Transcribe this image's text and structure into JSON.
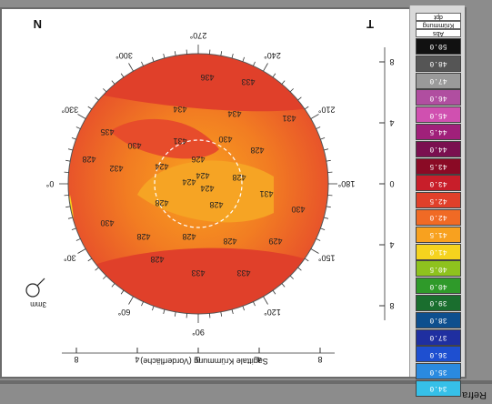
{
  "window_label": "Refra",
  "map": {
    "caption": "Sagittale Krümmung (Vorderfläche)",
    "corner_left": "T",
    "corner_right": "N",
    "scale_label": "3mm",
    "axis_ticks": [
      "8",
      "4",
      "0",
      "4",
      "8"
    ],
    "side_ticks": [
      "8",
      "4",
      "0",
      "4",
      "8"
    ],
    "angles": [
      "90°",
      "60°",
      "30°",
      "0°",
      "330°",
      "300°",
      "270°",
      "240°",
      "210°",
      "180°",
      "150°",
      "120°"
    ],
    "values": [
      "433",
      "433",
      "428",
      "429",
      "428",
      "428",
      "428",
      "430",
      "430",
      "428",
      "428",
      "431",
      "424",
      "424",
      "428",
      "424",
      "424",
      "432",
      "428",
      "426",
      "428",
      "430",
      "431",
      "430",
      "435",
      "431",
      "434",
      "434",
      "433",
      "436"
    ]
  },
  "legend": {
    "header_lines": [
      "Abs",
      "Krümmung",
      "dpt"
    ],
    "values": [
      "50.0",
      "48.0",
      "47.0",
      "46.0",
      "45.0",
      "44.5",
      "44.0",
      "43.5",
      "43.0",
      "42.5",
      "42.0",
      "41.5",
      "41.0",
      "40.5",
      "40.0",
      "39.0",
      "38.0",
      "37.0",
      "36.0",
      "35.0",
      "34.0"
    ],
    "colors": [
      "#111111",
      "#555555",
      "#9a9a9a",
      "#b04ea0",
      "#d050b0",
      "#a0207a",
      "#7a1050",
      "#8a0a25",
      "#c81e2a",
      "#e0402a",
      "#f06a25",
      "#f8a11f",
      "#f5d31e",
      "#8ec21e",
      "#2f9a2a",
      "#1a6e2e",
      "#0e4f8e",
      "#1f2fa0",
      "#1e4fd0",
      "#2a8ae0",
      "#36c0e8"
    ]
  }
}
